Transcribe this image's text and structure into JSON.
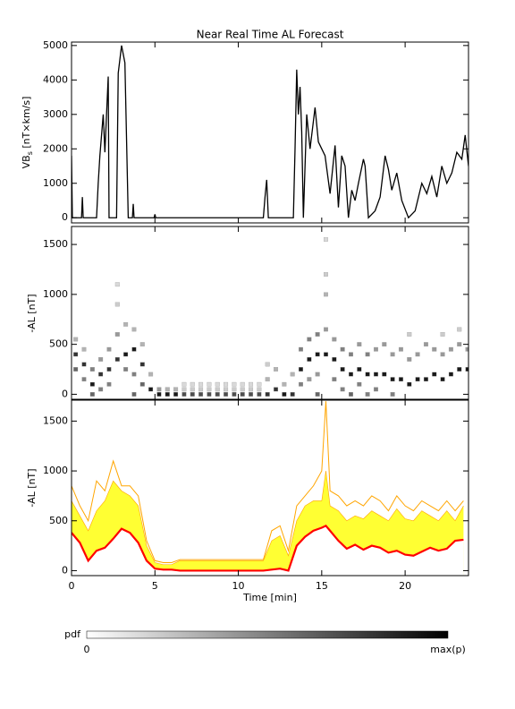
{
  "chart_data": [
    {
      "type": "line",
      "title": "Near Real Time AL Forecast",
      "ylabel_parts": [
        "VB",
        "s",
        " [nT×km/s]"
      ],
      "x": [
        0,
        0.05,
        0.6,
        0.65,
        0.7,
        1.5,
        1.6,
        1.7,
        1.9,
        2.0,
        2.2,
        2.25,
        2.7,
        2.8,
        3.0,
        3.2,
        3.4,
        3.65,
        3.7,
        3.75,
        4.95,
        5.0,
        5.05,
        11.5,
        11.6,
        11.7,
        11.8,
        13.3,
        13.4,
        13.5,
        13.6,
        13.7,
        13.8,
        13.9,
        14.1,
        14.3,
        14.6,
        14.8,
        15.2,
        15.5,
        15.8,
        16.0,
        16.2,
        16.4,
        16.6,
        16.8,
        17.0,
        17.2,
        17.5,
        17.6,
        17.8,
        18.2,
        18.5,
        18.8,
        19.0,
        19.2,
        19.5,
        19.8,
        20.2,
        20.6,
        21.0,
        21.3,
        21.6,
        21.9,
        22.2,
        22.5,
        22.8,
        23.1,
        23.4,
        23.6,
        23.8
      ],
      "values": [
        1800,
        0,
        0,
        600,
        0,
        0,
        1000,
        1800,
        3000,
        1900,
        4100,
        0,
        0,
        4200,
        5000,
        4500,
        0,
        0,
        400,
        0,
        0,
        100,
        0,
        0,
        600,
        1100,
        0,
        0,
        2000,
        4300,
        3000,
        3800,
        2500,
        0,
        3000,
        2000,
        3200,
        2200,
        1800,
        700,
        2100,
        300,
        1800,
        1500,
        0,
        800,
        500,
        1000,
        1700,
        1500,
        0,
        200,
        600,
        1800,
        1400,
        800,
        1300,
        500,
        0,
        200,
        1000,
        700,
        1200,
        600,
        1500,
        1000,
        1300,
        1900,
        1700,
        2400,
        1500
      ],
      "color": "#000000",
      "xlim": [
        0,
        23.8
      ],
      "ylim": [
        -150,
        5100
      ],
      "xticks": [
        0,
        5,
        10,
        15,
        20
      ],
      "yticks": [
        0,
        1000,
        2000,
        3000,
        4000,
        5000
      ],
      "show_xtick_labels": false
    },
    {
      "type": "heatmap",
      "ylabel": "-AL [nT]",
      "xlim": [
        0,
        23.8
      ],
      "ylim": [
        -50,
        1680
      ],
      "xticks": [
        0,
        5,
        10,
        15,
        20
      ],
      "yticks": [
        0,
        500,
        1000,
        1500
      ],
      "show_xtick_labels": false,
      "plim": [
        0,
        1
      ],
      "cell_size": [
        0.25,
        40
      ],
      "cells": [
        [
          0.25,
          400,
          0.8
        ],
        [
          0.25,
          250,
          0.6
        ],
        [
          0.25,
          550,
          0.3
        ],
        [
          0.75,
          300,
          0.8
        ],
        [
          0.75,
          150,
          0.5
        ],
        [
          0.75,
          450,
          0.3
        ],
        [
          1.25,
          100,
          0.9
        ],
        [
          1.25,
          250,
          0.5
        ],
        [
          1.25,
          0,
          0.6
        ],
        [
          1.75,
          200,
          0.8
        ],
        [
          1.75,
          350,
          0.4
        ],
        [
          1.75,
          50,
          0.5
        ],
        [
          2.25,
          250,
          0.8
        ],
        [
          2.25,
          450,
          0.4
        ],
        [
          2.25,
          100,
          0.5
        ],
        [
          2.75,
          350,
          0.8
        ],
        [
          2.75,
          600,
          0.4
        ],
        [
          2.75,
          900,
          0.2
        ],
        [
          2.75,
          1100,
          0.15
        ],
        [
          3.25,
          400,
          0.9
        ],
        [
          3.25,
          250,
          0.5
        ],
        [
          3.25,
          700,
          0.3
        ],
        [
          3.75,
          450,
          0.9
        ],
        [
          3.75,
          200,
          0.5
        ],
        [
          3.75,
          650,
          0.3
        ],
        [
          3.75,
          0,
          0.6
        ],
        [
          4.25,
          300,
          0.8
        ],
        [
          4.25,
          100,
          0.6
        ],
        [
          4.25,
          500,
          0.3
        ],
        [
          4.75,
          50,
          0.9
        ],
        [
          4.75,
          200,
          0.3
        ],
        [
          5.25,
          0,
          0.9
        ],
        [
          5.25,
          50,
          0.4
        ],
        [
          5.75,
          0,
          0.9
        ],
        [
          5.75,
          50,
          0.3
        ],
        [
          6.25,
          0,
          0.9
        ],
        [
          6.25,
          50,
          0.3
        ],
        [
          6.75,
          0,
          0.7
        ],
        [
          6.75,
          50,
          0.2
        ],
        [
          6.75,
          100,
          0.15
        ],
        [
          7.25,
          0,
          0.7
        ],
        [
          7.25,
          50,
          0.2
        ],
        [
          7.25,
          100,
          0.15
        ],
        [
          7.75,
          0,
          0.7
        ],
        [
          7.75,
          50,
          0.2
        ],
        [
          7.75,
          100,
          0.15
        ],
        [
          8.25,
          0,
          0.7
        ],
        [
          8.25,
          50,
          0.2
        ],
        [
          8.25,
          100,
          0.15
        ],
        [
          8.75,
          0,
          0.7
        ],
        [
          8.75,
          50,
          0.2
        ],
        [
          8.75,
          100,
          0.15
        ],
        [
          9.25,
          0,
          0.7
        ],
        [
          9.25,
          50,
          0.2
        ],
        [
          9.25,
          100,
          0.15
        ],
        [
          9.75,
          0,
          0.7
        ],
        [
          9.75,
          50,
          0.2
        ],
        [
          9.75,
          100,
          0.15
        ],
        [
          10.25,
          0,
          0.7
        ],
        [
          10.25,
          50,
          0.2
        ],
        [
          10.25,
          100,
          0.15
        ],
        [
          10.75,
          0,
          0.7
        ],
        [
          10.75,
          50,
          0.2
        ],
        [
          10.75,
          100,
          0.15
        ],
        [
          11.25,
          0,
          0.7
        ],
        [
          11.25,
          50,
          0.2
        ],
        [
          11.25,
          100,
          0.15
        ],
        [
          11.75,
          0,
          0.8
        ],
        [
          11.75,
          150,
          0.3
        ],
        [
          11.75,
          300,
          0.2
        ],
        [
          12.25,
          50,
          0.8
        ],
        [
          12.25,
          250,
          0.3
        ],
        [
          12.75,
          0,
          0.9
        ],
        [
          12.75,
          100,
          0.3
        ],
        [
          13.25,
          0,
          0.8
        ],
        [
          13.25,
          200,
          0.3
        ],
        [
          13.75,
          250,
          0.9
        ],
        [
          13.75,
          450,
          0.5
        ],
        [
          13.75,
          100,
          0.5
        ],
        [
          14.25,
          350,
          0.9
        ],
        [
          14.25,
          550,
          0.5
        ],
        [
          14.25,
          150,
          0.4
        ],
        [
          14.75,
          400,
          0.9
        ],
        [
          14.75,
          600,
          0.5
        ],
        [
          14.75,
          200,
          0.4
        ],
        [
          14.75,
          0,
          0.6
        ],
        [
          15.25,
          400,
          0.9
        ],
        [
          15.25,
          1000,
          0.3
        ],
        [
          15.25,
          1200,
          0.2
        ],
        [
          15.25,
          1550,
          0.15
        ],
        [
          15.25,
          650,
          0.4
        ],
        [
          15.75,
          350,
          0.9
        ],
        [
          15.75,
          150,
          0.5
        ],
        [
          15.75,
          550,
          0.4
        ],
        [
          16.25,
          250,
          0.9
        ],
        [
          16.25,
          450,
          0.5
        ],
        [
          16.25,
          50,
          0.5
        ],
        [
          16.75,
          200,
          0.9
        ],
        [
          16.75,
          400,
          0.5
        ],
        [
          16.75,
          0,
          0.6
        ],
        [
          17.25,
          250,
          0.9
        ],
        [
          17.25,
          500,
          0.4
        ],
        [
          17.25,
          100,
          0.5
        ],
        [
          17.75,
          200,
          0.9
        ],
        [
          17.75,
          400,
          0.5
        ],
        [
          17.75,
          0,
          0.5
        ],
        [
          18.25,
          200,
          0.9
        ],
        [
          18.25,
          450,
          0.4
        ],
        [
          18.25,
          50,
          0.5
        ],
        [
          18.75,
          200,
          0.9
        ],
        [
          18.75,
          500,
          0.4
        ],
        [
          19.25,
          150,
          0.9
        ],
        [
          19.25,
          400,
          0.4
        ],
        [
          19.25,
          0,
          0.5
        ],
        [
          19.75,
          150,
          0.9
        ],
        [
          19.75,
          450,
          0.4
        ],
        [
          20.25,
          100,
          0.9
        ],
        [
          20.25,
          350,
          0.4
        ],
        [
          20.25,
          600,
          0.2
        ],
        [
          20.75,
          150,
          0.9
        ],
        [
          20.75,
          400,
          0.4
        ],
        [
          21.25,
          150,
          0.9
        ],
        [
          21.25,
          500,
          0.4
        ],
        [
          21.75,
          200,
          0.9
        ],
        [
          21.75,
          450,
          0.4
        ],
        [
          22.25,
          150,
          0.9
        ],
        [
          22.25,
          400,
          0.4
        ],
        [
          22.25,
          600,
          0.2
        ],
        [
          22.75,
          200,
          0.9
        ],
        [
          22.75,
          450,
          0.4
        ],
        [
          23.25,
          250,
          0.9
        ],
        [
          23.25,
          500,
          0.4
        ],
        [
          23.25,
          650,
          0.2
        ],
        [
          23.75,
          250,
          0.9
        ],
        [
          23.75,
          450,
          0.4
        ]
      ]
    },
    {
      "type": "band",
      "ylabel": "-AL [nT]",
      "xlabel": "Time [min]",
      "xlim": [
        0,
        23.8
      ],
      "ylim": [
        -50,
        1710
      ],
      "xticks": [
        0,
        5,
        10,
        15,
        20
      ],
      "yticks": [
        0,
        500,
        1000,
        1500
      ],
      "show_xtick_labels": true,
      "x": [
        0,
        0.5,
        1,
        1.5,
        2,
        2.5,
        3,
        3.5,
        4,
        4.5,
        5,
        5.5,
        6,
        6.5,
        7,
        7.5,
        8,
        8.5,
        9,
        9.5,
        10,
        10.5,
        11,
        11.5,
        12,
        12.5,
        13,
        13.5,
        14,
        14.5,
        15,
        15.25,
        15.5,
        16,
        16.5,
        17,
        17.5,
        18,
        18.5,
        19,
        19.5,
        20,
        20.5,
        21,
        21.5,
        22,
        22.5,
        23,
        23.5
      ],
      "max_values": [
        850,
        650,
        500,
        900,
        800,
        1100,
        850,
        850,
        750,
        300,
        100,
        80,
        80,
        110,
        110,
        110,
        110,
        110,
        110,
        110,
        110,
        110,
        110,
        110,
        400,
        450,
        200,
        650,
        750,
        850,
        1000,
        1700,
        800,
        750,
        650,
        700,
        650,
        750,
        700,
        600,
        750,
        650,
        600,
        700,
        650,
        600,
        700,
        600,
        700
      ],
      "upper_values": [
        700,
        550,
        400,
        600,
        700,
        900,
        800,
        750,
        650,
        250,
        80,
        60,
        60,
        100,
        100,
        100,
        100,
        100,
        100,
        100,
        100,
        100,
        100,
        100,
        300,
        350,
        150,
        500,
        650,
        700,
        700,
        1000,
        650,
        600,
        500,
        550,
        520,
        600,
        550,
        500,
        620,
        520,
        500,
        600,
        550,
        500,
        600,
        500,
        650
      ],
      "median_values": [
        380,
        280,
        100,
        200,
        230,
        320,
        420,
        380,
        280,
        100,
        20,
        10,
        10,
        0,
        0,
        0,
        0,
        0,
        0,
        0,
        0,
        0,
        0,
        0,
        10,
        20,
        0,
        250,
        340,
        400,
        430,
        450,
        400,
        300,
        220,
        260,
        210,
        250,
        230,
        180,
        200,
        160,
        150,
        190,
        230,
        200,
        220,
        300,
        310
      ],
      "max_color": "#ffa500",
      "upper_color": "#ffff33",
      "median_color": "#ff0000"
    }
  ],
  "colorbar": {
    "label": "pdf",
    "min": 0,
    "max_label": "max(p)"
  }
}
